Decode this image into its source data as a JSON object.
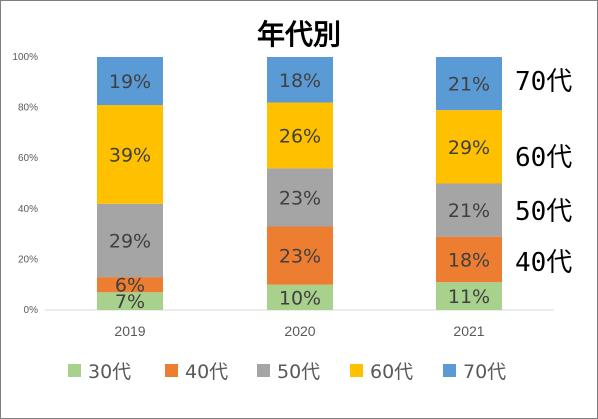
{
  "chart_data": {
    "type": "bar",
    "stacked": true,
    "title": "年代別",
    "categories": [
      "2019",
      "2020",
      "2021"
    ],
    "ylim": [
      0,
      100
    ],
    "yticks": [
      "0%",
      "20%",
      "40%",
      "60%",
      "80%",
      "100%"
    ],
    "grid": false,
    "legend_position": "bottom",
    "series": [
      {
        "name": "30代",
        "color": "#a9d18e",
        "values": [
          7,
          10,
          11
        ],
        "labels": [
          "7%",
          "10%",
          "11%"
        ]
      },
      {
        "name": "40代",
        "color": "#ed7d31",
        "values": [
          6,
          23,
          18
        ],
        "labels": [
          "6%",
          "23%",
          "18%"
        ]
      },
      {
        "name": "50代",
        "color": "#a5a5a5",
        "values": [
          29,
          23,
          21
        ],
        "labels": [
          "29%",
          "23%",
          "21%"
        ]
      },
      {
        "name": "60代",
        "color": "#ffc000",
        "values": [
          39,
          26,
          29
        ],
        "labels": [
          "39%",
          "26%",
          "29%"
        ]
      },
      {
        "name": "70代",
        "color": "#5b9bd5",
        "values": [
          19,
          18,
          21
        ],
        "labels": [
          "19%",
          "18%",
          "21%"
        ]
      }
    ],
    "side_annotations": [
      "70代",
      "60代",
      "50代",
      "40代"
    ]
  }
}
